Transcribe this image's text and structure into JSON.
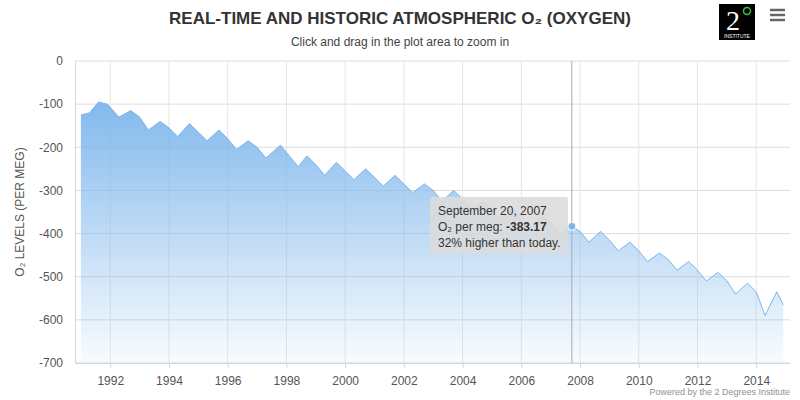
{
  "chart_data": {
    "type": "area",
    "title": "REAL-TIME AND HISTORIC ATMOSPHERIC O₂ (OXYGEN)",
    "subtitle": "Click and drag in the plot area to zoom in",
    "y_label": "O₂ LEVELS (PER MEG)",
    "logo": "2",
    "logo_subtext": "INSTITUTE",
    "credit": "Powered by the 2 Degrees Institute",
    "color": "#7cb5ec",
    "grid": true,
    "xlim": [
      1990.8,
      2015.15
    ],
    "xticks": [
      1992,
      1994,
      1996,
      1998,
      2000,
      2002,
      2004,
      2006,
      2008,
      2010,
      2012,
      2014
    ],
    "ylim": [
      -700,
      0
    ],
    "yticks": [
      -700,
      -600,
      -500,
      -400,
      -300,
      -200,
      -100,
      0
    ],
    "x": [
      1991.0,
      1991.3,
      1991.6,
      1991.9,
      1992.3,
      1992.7,
      1993.0,
      1993.3,
      1993.7,
      1994.0,
      1994.3,
      1994.7,
      1995.0,
      1995.3,
      1995.7,
      1996.0,
      1996.3,
      1996.7,
      1997.0,
      1997.3,
      1997.8,
      1998.1,
      1998.4,
      1998.7,
      1999.0,
      1999.3,
      1999.7,
      2000.0,
      2000.3,
      2000.7,
      2001.0,
      2001.3,
      2001.7,
      2002.0,
      2002.3,
      2002.7,
      2003.0,
      2003.3,
      2003.7,
      2004.0,
      2004.3,
      2004.7,
      2005.0,
      2005.3,
      2005.7,
      2006.0,
      2006.3,
      2006.7,
      2007.0,
      2007.3,
      2007.72,
      2008.0,
      2008.3,
      2008.7,
      2009.0,
      2009.3,
      2009.7,
      2010.0,
      2010.3,
      2010.7,
      2011.0,
      2011.3,
      2011.7,
      2012.0,
      2012.3,
      2012.7,
      2013.0,
      2013.3,
      2013.7,
      2014.0,
      2014.3,
      2014.7,
      2014.92
    ],
    "values": [
      -125,
      -120,
      -95,
      -100,
      -130,
      -115,
      -130,
      -160,
      -140,
      -155,
      -175,
      -145,
      -165,
      -185,
      -160,
      -180,
      -205,
      -185,
      -200,
      -225,
      -195,
      -220,
      -245,
      -220,
      -240,
      -265,
      -235,
      -255,
      -275,
      -250,
      -270,
      -290,
      -265,
      -285,
      -305,
      -285,
      -300,
      -325,
      -300,
      -320,
      -345,
      -325,
      -345,
      -365,
      -340,
      -360,
      -385,
      -360,
      -375,
      -400,
      -383.17,
      -395,
      -420,
      -395,
      -415,
      -440,
      -420,
      -440,
      -465,
      -445,
      -460,
      -485,
      -465,
      -485,
      -510,
      -490,
      -510,
      -540,
      -515,
      -535,
      -590,
      -535,
      -565
    ],
    "annotations": [
      {
        "x": 2007.72,
        "y": -383.17,
        "date_label": "September 20, 2007",
        "value_prefix": "O₂ per meg: ",
        "note": "32% higher than today."
      }
    ]
  }
}
